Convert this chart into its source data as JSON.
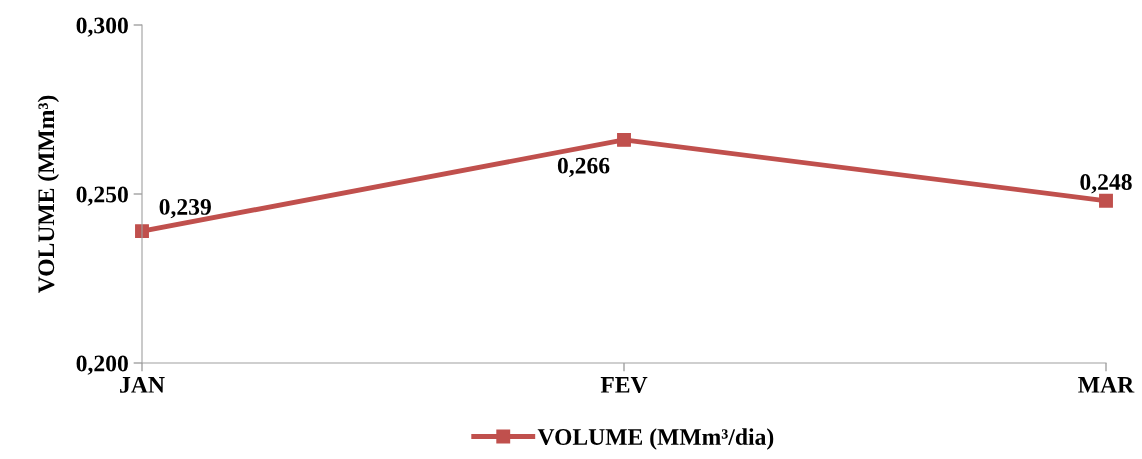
{
  "chart_data": {
    "type": "line",
    "ylabel": "VOLUME (MMm³)",
    "categories": [
      "JAN",
      "FEV",
      "MAR"
    ],
    "series": [
      {
        "name": "VOLUME (MMm³/dia)",
        "color": "#c0504d",
        "values": [
          0.239,
          0.266,
          0.248
        ],
        "value_labels": [
          "0,239",
          "0,266",
          "0,248"
        ]
      }
    ],
    "ylim": [
      0.2,
      0.3
    ],
    "yticks": [
      {
        "value": 0.2,
        "label": "0,200"
      },
      {
        "value": 0.25,
        "label": "0,250"
      },
      {
        "value": 0.3,
        "label": "0,300"
      }
    ],
    "grid": false,
    "legend": "bottom",
    "marker": "square",
    "line_style": "solid"
  }
}
